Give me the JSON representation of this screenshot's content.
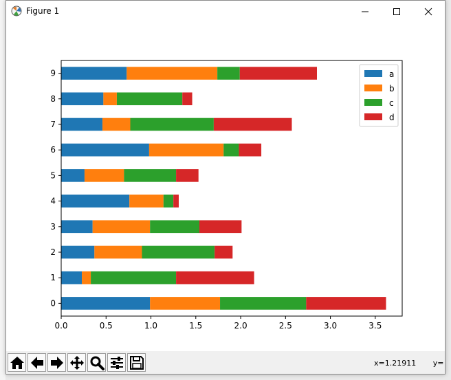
{
  "window": {
    "title": "Figure 1",
    "controls": [
      "minimize",
      "maximize",
      "close"
    ]
  },
  "toolbar": {
    "buttons": [
      {
        "name": "home-icon",
        "label": "Home"
      },
      {
        "name": "back-arrow-icon",
        "label": "Back"
      },
      {
        "name": "forward-arrow-icon",
        "label": "Forward"
      },
      {
        "name": "pan-move-icon",
        "label": "Pan"
      },
      {
        "name": "zoom-magnifier-icon",
        "label": "Zoom"
      },
      {
        "name": "configure-subplots-icon",
        "label": "Subplots"
      },
      {
        "name": "save-disk-icon",
        "label": "Save"
      }
    ],
    "coords_text": "x=1.21911       y="
  },
  "chart_data": {
    "type": "bar",
    "orientation": "horizontal",
    "stacked": true,
    "categories": [
      "0",
      "1",
      "2",
      "3",
      "4",
      "5",
      "6",
      "7",
      "8",
      "9"
    ],
    "series": [
      {
        "name": "a",
        "color": "#1f77b4",
        "values": [
          0.99,
          0.23,
          0.37,
          0.35,
          0.76,
          0.26,
          0.98,
          0.46,
          0.47,
          0.73
        ]
      },
      {
        "name": "b",
        "color": "#ff7f0e",
        "values": [
          0.78,
          0.1,
          0.53,
          0.64,
          0.38,
          0.44,
          0.83,
          0.31,
          0.15,
          1.01
        ]
      },
      {
        "name": "c",
        "color": "#2ca02c",
        "values": [
          0.96,
          0.95,
          0.81,
          0.55,
          0.11,
          0.58,
          0.17,
          0.93,
          0.73,
          0.25
        ]
      },
      {
        "name": "d",
        "color": "#d62728",
        "values": [
          0.89,
          0.87,
          0.2,
          0.47,
          0.06,
          0.25,
          0.25,
          0.87,
          0.11,
          0.86
        ]
      }
    ],
    "xlim": [
      0,
      3.8
    ],
    "xticks": [
      "0.0",
      "0.5",
      "1.0",
      "1.5",
      "2.0",
      "2.5",
      "3.0",
      "3.5"
    ],
    "xtick_values": [
      0,
      0.5,
      1.0,
      1.5,
      2.0,
      2.5,
      3.0,
      3.5
    ],
    "grid": false,
    "legend": "top-right"
  }
}
